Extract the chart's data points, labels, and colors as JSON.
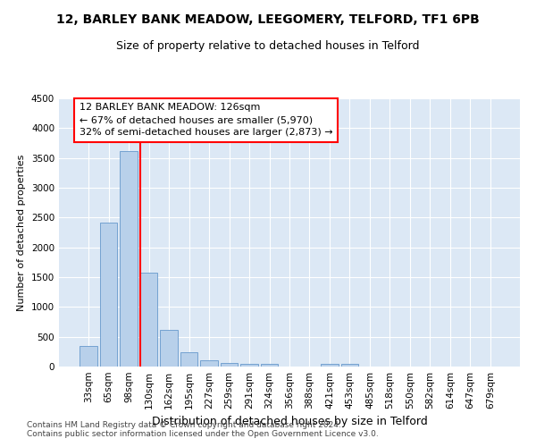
{
  "title1": "12, BARLEY BANK MEADOW, LEEGOMERY, TELFORD, TF1 6PB",
  "title2": "Size of property relative to detached houses in Telford",
  "xlabel": "Distribution of detached houses by size in Telford",
  "ylabel": "Number of detached properties",
  "categories": [
    "33sqm",
    "65sqm",
    "98sqm",
    "130sqm",
    "162sqm",
    "195sqm",
    "227sqm",
    "259sqm",
    "291sqm",
    "324sqm",
    "356sqm",
    "388sqm",
    "421sqm",
    "453sqm",
    "485sqm",
    "518sqm",
    "550sqm",
    "582sqm",
    "614sqm",
    "647sqm",
    "679sqm"
  ],
  "values": [
    350,
    2420,
    3620,
    1580,
    620,
    240,
    110,
    60,
    50,
    50,
    0,
    0,
    50,
    50,
    0,
    0,
    0,
    0,
    0,
    0,
    0
  ],
  "bar_color": "#b8d0ea",
  "bar_edge_color": "#6699cc",
  "vline_color": "red",
  "vline_xindex": 2.575,
  "annotation_line1": "12 BARLEY BANK MEADOW: 126sqm",
  "annotation_line2": "← 67% of detached houses are smaller (5,970)",
  "annotation_line3": "32% of semi-detached houses are larger (2,873) →",
  "annotation_box_color": "white",
  "annotation_box_edge_color": "red",
  "ylim": [
    0,
    4500
  ],
  "yticks": [
    0,
    500,
    1000,
    1500,
    2000,
    2500,
    3000,
    3500,
    4000,
    4500
  ],
  "background_color": "#dce8f5",
  "footer_text": "Contains HM Land Registry data © Crown copyright and database right 2024.\nContains public sector information licensed under the Open Government Licence v3.0.",
  "title1_fontsize": 10,
  "title2_fontsize": 9,
  "xlabel_fontsize": 9,
  "ylabel_fontsize": 8,
  "tick_fontsize": 7.5,
  "annotation_fontsize": 8,
  "footer_fontsize": 6.5
}
